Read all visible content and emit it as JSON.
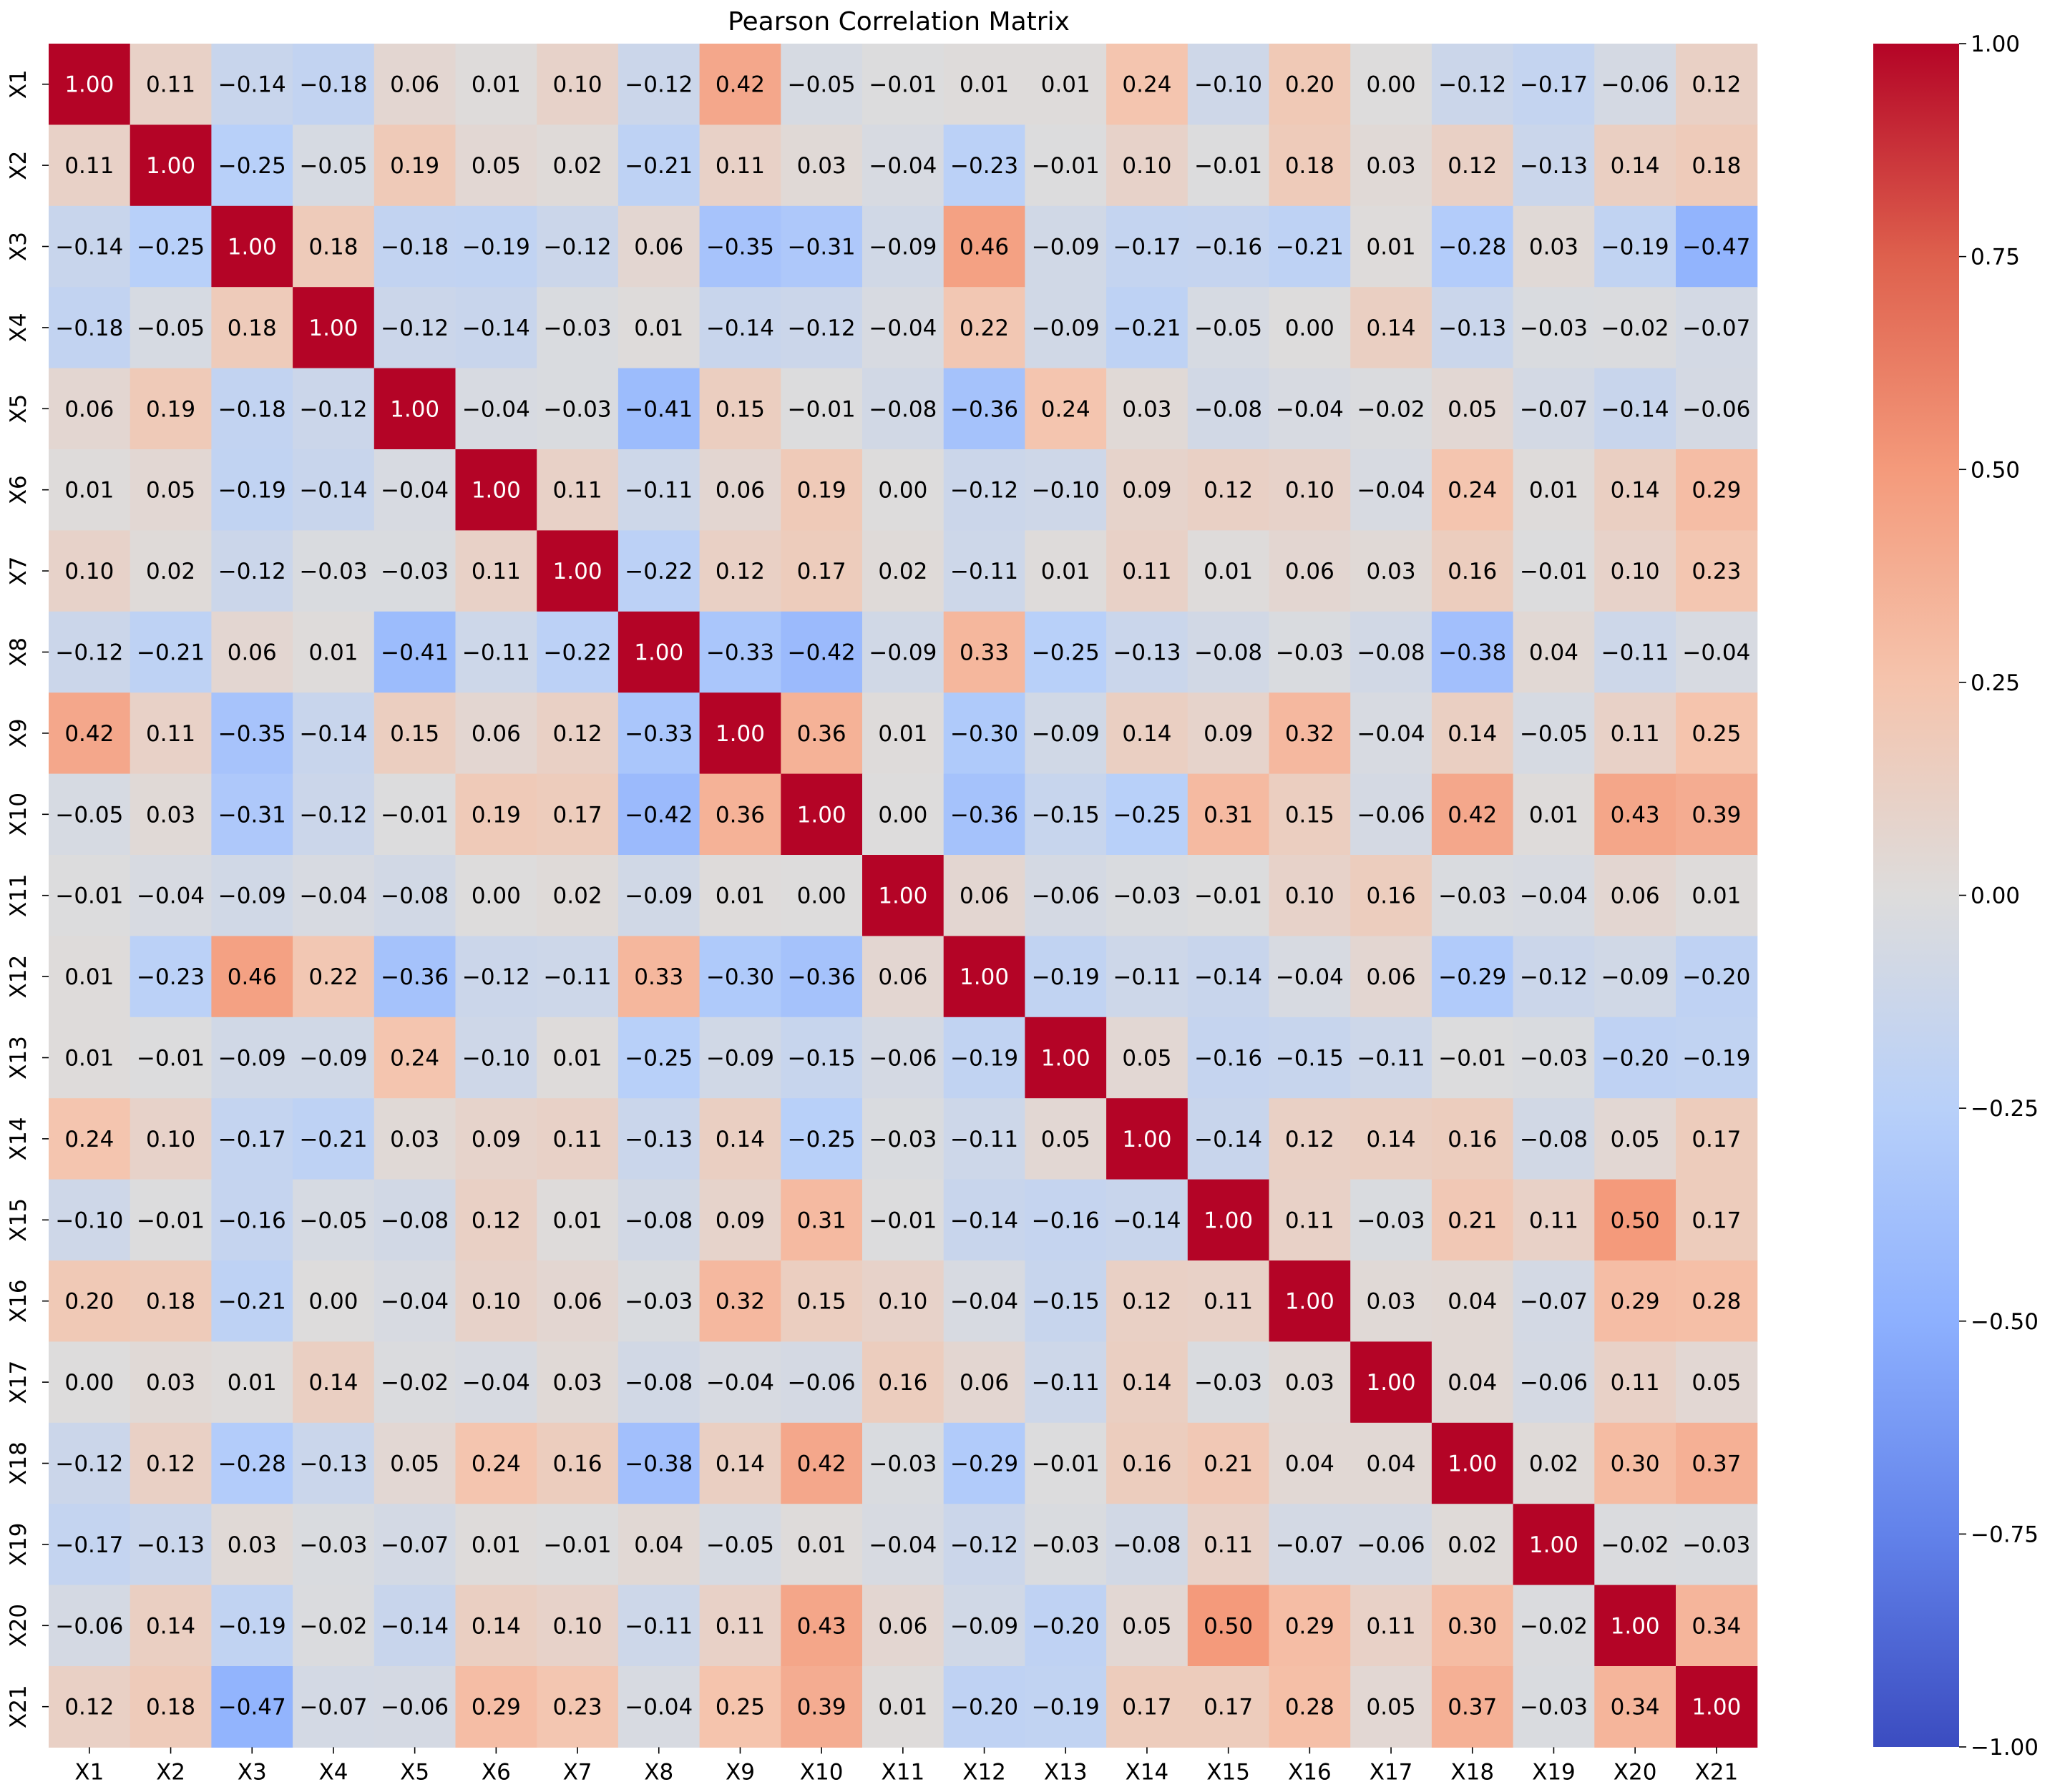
{
  "chart_data": {
    "type": "heatmap",
    "title": "Pearson Correlation Matrix",
    "xlabel": "",
    "ylabel": "",
    "labels": [
      "X1",
      "X2",
      "X3",
      "X4",
      "X5",
      "X6",
      "X7",
      "X8",
      "X9",
      "X10",
      "X11",
      "X12",
      "X13",
      "X14",
      "X15",
      "X16",
      "X17",
      "X18",
      "X19",
      "X20",
      "X21"
    ],
    "matrix": [
      [
        1.0,
        0.11,
        -0.14,
        -0.18,
        0.06,
        0.01,
        0.1,
        -0.12,
        0.42,
        -0.05,
        -0.01,
        0.01,
        0.01,
        0.24,
        -0.1,
        0.2,
        -0.0,
        -0.12,
        -0.17,
        -0.06,
        0.12
      ],
      [
        0.11,
        1.0,
        -0.25,
        -0.05,
        0.19,
        0.05,
        0.02,
        -0.21,
        0.11,
        0.03,
        -0.04,
        -0.23,
        -0.01,
        0.1,
        -0.01,
        0.18,
        0.03,
        0.12,
        -0.13,
        0.14,
        0.18
      ],
      [
        -0.14,
        -0.25,
        1.0,
        0.18,
        -0.18,
        -0.19,
        -0.12,
        0.06,
        -0.35,
        -0.31,
        -0.09,
        0.46,
        -0.09,
        -0.17,
        -0.16,
        -0.21,
        0.01,
        -0.28,
        0.03,
        -0.19,
        -0.47
      ],
      [
        -0.18,
        -0.05,
        0.18,
        1.0,
        -0.12,
        -0.14,
        -0.03,
        0.01,
        -0.14,
        -0.12,
        -0.04,
        0.22,
        -0.09,
        -0.21,
        -0.05,
        -0.0,
        0.14,
        -0.13,
        -0.03,
        -0.02,
        -0.07
      ],
      [
        0.06,
        0.19,
        -0.18,
        -0.12,
        1.0,
        -0.04,
        -0.03,
        -0.41,
        0.15,
        -0.01,
        -0.08,
        -0.36,
        0.24,
        0.03,
        -0.08,
        -0.04,
        -0.02,
        0.05,
        -0.07,
        -0.14,
        -0.06
      ],
      [
        0.01,
        0.05,
        -0.19,
        -0.14,
        -0.04,
        1.0,
        0.11,
        -0.11,
        0.06,
        0.19,
        0.0,
        -0.12,
        -0.1,
        0.09,
        0.12,
        0.1,
        -0.04,
        0.24,
        0.01,
        0.14,
        0.29
      ],
      [
        0.1,
        0.02,
        -0.12,
        -0.03,
        -0.03,
        0.11,
        1.0,
        -0.22,
        0.12,
        0.17,
        0.02,
        -0.11,
        0.01,
        0.11,
        0.01,
        0.06,
        0.03,
        0.16,
        -0.01,
        0.1,
        0.23
      ],
      [
        -0.12,
        -0.21,
        0.06,
        0.01,
        -0.41,
        -0.11,
        -0.22,
        1.0,
        -0.33,
        -0.42,
        -0.09,
        0.33,
        -0.25,
        -0.13,
        -0.08,
        -0.03,
        -0.08,
        -0.38,
        0.04,
        -0.11,
        -0.04
      ],
      [
        0.42,
        0.11,
        -0.35,
        -0.14,
        0.15,
        0.06,
        0.12,
        -0.33,
        1.0,
        0.36,
        0.01,
        -0.3,
        -0.09,
        0.14,
        0.09,
        0.32,
        -0.04,
        0.14,
        -0.05,
        0.11,
        0.25
      ],
      [
        -0.05,
        0.03,
        -0.31,
        -0.12,
        -0.01,
        0.19,
        0.17,
        -0.42,
        0.36,
        1.0,
        -0.0,
        -0.36,
        -0.15,
        -0.25,
        0.31,
        0.15,
        -0.06,
        0.42,
        0.01,
        0.43,
        0.39
      ],
      [
        -0.01,
        -0.04,
        -0.09,
        -0.04,
        -0.08,
        0.0,
        0.02,
        -0.09,
        0.01,
        -0.0,
        1.0,
        0.06,
        -0.06,
        -0.03,
        -0.01,
        0.1,
        0.16,
        -0.03,
        -0.04,
        0.06,
        0.01
      ],
      [
        0.01,
        -0.23,
        0.46,
        0.22,
        -0.36,
        -0.12,
        -0.11,
        0.33,
        -0.3,
        -0.36,
        0.06,
        1.0,
        -0.19,
        -0.11,
        -0.14,
        -0.04,
        0.06,
        -0.29,
        -0.12,
        -0.09,
        -0.2
      ],
      [
        0.01,
        -0.01,
        -0.09,
        -0.09,
        0.24,
        -0.1,
        0.01,
        -0.25,
        -0.09,
        -0.15,
        -0.06,
        -0.19,
        1.0,
        0.05,
        -0.16,
        -0.15,
        -0.11,
        -0.01,
        -0.03,
        -0.2,
        -0.19
      ],
      [
        0.24,
        0.1,
        -0.17,
        -0.21,
        0.03,
        0.09,
        0.11,
        -0.13,
        0.14,
        -0.25,
        -0.03,
        -0.11,
        0.05,
        1.0,
        -0.14,
        0.12,
        0.14,
        0.16,
        -0.08,
        0.05,
        0.17
      ],
      [
        -0.1,
        -0.01,
        -0.16,
        -0.05,
        -0.08,
        0.12,
        0.01,
        -0.08,
        0.09,
        0.31,
        -0.01,
        -0.14,
        -0.16,
        -0.14,
        1.0,
        0.11,
        -0.03,
        0.21,
        0.11,
        0.5,
        0.17
      ],
      [
        0.2,
        0.18,
        -0.21,
        -0.0,
        -0.04,
        0.1,
        0.06,
        -0.03,
        0.32,
        0.15,
        0.1,
        -0.04,
        -0.15,
        0.12,
        0.11,
        1.0,
        0.03,
        0.04,
        -0.07,
        0.29,
        0.28
      ],
      [
        -0.0,
        0.03,
        0.01,
        0.14,
        -0.02,
        -0.04,
        0.03,
        -0.08,
        -0.04,
        -0.06,
        0.16,
        0.06,
        -0.11,
        0.14,
        -0.03,
        0.03,
        1.0,
        0.04,
        -0.06,
        0.11,
        0.05
      ],
      [
        -0.12,
        0.12,
        -0.28,
        -0.13,
        0.05,
        0.24,
        0.16,
        -0.38,
        0.14,
        0.42,
        -0.03,
        -0.29,
        -0.01,
        0.16,
        0.21,
        0.04,
        0.04,
        1.0,
        0.02,
        0.3,
        0.37
      ],
      [
        -0.17,
        -0.13,
        0.03,
        -0.03,
        -0.07,
        0.01,
        -0.01,
        0.04,
        -0.05,
        0.01,
        -0.04,
        -0.12,
        -0.03,
        -0.08,
        0.11,
        -0.07,
        -0.06,
        0.02,
        1.0,
        -0.02,
        -0.03
      ],
      [
        -0.06,
        0.14,
        -0.19,
        -0.02,
        -0.14,
        0.14,
        0.1,
        -0.11,
        0.11,
        0.43,
        0.06,
        -0.09,
        -0.2,
        0.05,
        0.5,
        0.29,
        0.11,
        0.3,
        -0.02,
        1.0,
        0.34
      ],
      [
        0.12,
        0.18,
        -0.47,
        -0.07,
        -0.06,
        0.29,
        0.23,
        -0.04,
        0.25,
        0.39,
        0.01,
        -0.2,
        -0.19,
        0.17,
        0.17,
        0.28,
        0.05,
        0.37,
        -0.03,
        0.34,
        1.0
      ]
    ],
    "colorbar": {
      "vmin": -1.0,
      "vmax": 1.0,
      "ticks": [
        -1.0,
        -0.75,
        -0.5,
        -0.25,
        0.0,
        0.25,
        0.5,
        0.75,
        1.0
      ],
      "colormap": "coolwarm",
      "color_low": "#3b4cc0",
      "color_mid": "#dddcdc",
      "color_high": "#b40426"
    },
    "annotations": true
  }
}
